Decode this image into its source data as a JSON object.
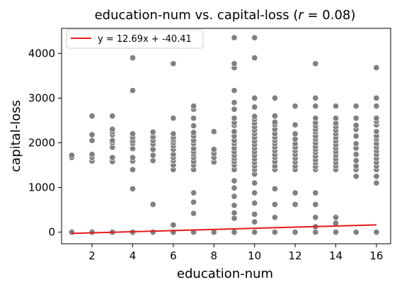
{
  "chart_data": {
    "type": "scatter",
    "title_prefix": "education-num vs. capital-loss (",
    "title_var": "r",
    "title_suffix": " = 0.08)",
    "xlabel": "education-num",
    "ylabel": "capital-loss",
    "xlim": [
      0.5,
      16.7
    ],
    "ylim": [
      -260,
      4560
    ],
    "xticks": [
      2,
      4,
      6,
      8,
      10,
      12,
      14,
      16
    ],
    "yticks": [
      0,
      1000,
      2000,
      3000,
      4000
    ],
    "grid": false,
    "legend": {
      "placement": "top-left",
      "entries": [
        {
          "label": "y = 12.69x + -40.41",
          "color": "#e41a1c"
        }
      ]
    },
    "fit_line": {
      "slope": 12.69,
      "intercept": -40.41,
      "x_range": [
        1,
        16
      ],
      "color": "#e41a1c"
    },
    "marker_color": "#808080",
    "points_by_x": {
      "1": [
        0,
        1670,
        1720
      ],
      "2": [
        0,
        1590,
        1670,
        1740,
        2050,
        2180,
        2600
      ],
      "3": [
        0,
        1580,
        1670,
        1900,
        2000,
        2050,
        2180,
        2240,
        2300,
        2600
      ],
      "4": [
        0,
        970,
        1400,
        1590,
        1670,
        1870,
        1980,
        2040,
        2120,
        2200,
        3170,
        3900
      ],
      "5": [
        0,
        620,
        1600,
        1720,
        1850,
        1970,
        2050,
        2130,
        2240
      ],
      "6": [
        0,
        160,
        1400,
        1500,
        1600,
        1670,
        1740,
        1850,
        1930,
        2000,
        2060,
        2120,
        2200,
        2550,
        3770
      ],
      "7": [
        0,
        420,
        670,
        880,
        1400,
        1500,
        1580,
        1670,
        1740,
        1800,
        1870,
        1980,
        2050,
        2150,
        2230,
        2380,
        2550,
        2750,
        2820
      ],
      "8": [
        0,
        1570,
        1670,
        1760,
        1850,
        2250
      ],
      "9": [
        0,
        310,
        430,
        600,
        800,
        990,
        1150,
        1400,
        1500,
        1580,
        1650,
        1720,
        1800,
        1880,
        1980,
        2050,
        2150,
        2250,
        2390,
        2450,
        2550,
        2750,
        2900,
        3170,
        3680,
        3770,
        4350
      ],
      "10": [
        0,
        230,
        400,
        650,
        880,
        1100,
        1300,
        1400,
        1480,
        1560,
        1640,
        1720,
        1800,
        1880,
        1960,
        2040,
        2120,
        2200,
        2280,
        2360,
        2440,
        2520,
        2590,
        2800,
        3000,
        3900,
        4350
      ],
      "11": [
        0,
        330,
        620,
        970,
        1400,
        1480,
        1580,
        1670,
        1740,
        1820,
        1900,
        1980,
        2050,
        2120,
        2200,
        2300,
        2400,
        2460,
        2600,
        3000
      ],
      "12": [
        0,
        620,
        880,
        1400,
        1480,
        1570,
        1650,
        1740,
        1820,
        1900,
        1980,
        2080,
        2200,
        2400,
        2820
      ],
      "13": [
        0,
        120,
        330,
        620,
        880,
        1400,
        1470,
        1550,
        1620,
        1700,
        1780,
        1850,
        1920,
        2000,
        2080,
        2150,
        2240,
        2300,
        2380,
        2450,
        2550,
        2820,
        3000,
        3770
      ],
      "14": [
        0,
        200,
        330,
        1400,
        1480,
        1560,
        1640,
        1720,
        1800,
        1880,
        1960,
        2040,
        2120,
        2200,
        2280,
        2360,
        2440,
        2550,
        2820
      ],
      "15": [
        0,
        1250,
        1400,
        1480,
        1600,
        1740,
        1880,
        1980,
        2150,
        2300,
        2390,
        2550,
        2820
      ],
      "16": [
        0,
        1100,
        1250,
        1400,
        1480,
        1560,
        1650,
        1740,
        1820,
        1900,
        1980,
        2080,
        2150,
        2250,
        2400,
        2480,
        2550,
        2820,
        3000,
        3680
      ]
    }
  }
}
